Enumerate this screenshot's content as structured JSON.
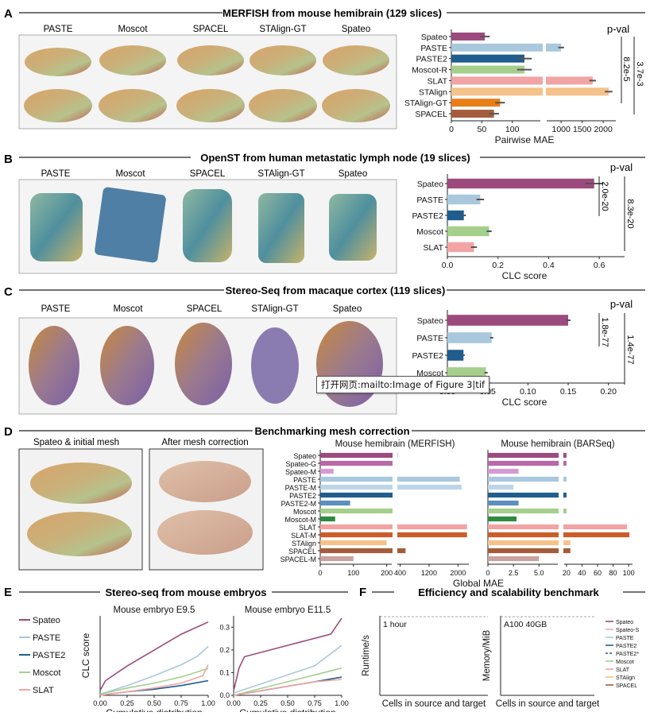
{
  "panels": {
    "A": {
      "letter": "A",
      "title": "MERFISH from mouse hemibrain (129 slices)",
      "methods": [
        "PASTE",
        "Moscot",
        "SPACEL",
        "STAlign-GT",
        "Spateo"
      ],
      "pval_label": "p-val",
      "pvals": [
        "8.2e-5",
        "3.7e-3"
      ]
    },
    "B": {
      "letter": "B",
      "title": "OpenST from human metastatic lymph node (19 slices)",
      "methods": [
        "PASTE",
        "Moscot",
        "SPACEL",
        "STAlign-GT",
        "Spateo"
      ],
      "pval_label": "p-val",
      "pvals": [
        "2.0e-20",
        "8.3e-20"
      ]
    },
    "C": {
      "letter": "C",
      "title": "Stereo-Seq from macaque cortex (119 slices)",
      "methods": [
        "PASTE",
        "Moscot",
        "SPACEL",
        "STAlign-GT",
        "Spateo"
      ],
      "pval_label": "p-val",
      "pvals": [
        "1.8e-77",
        "1.4e-77"
      ]
    },
    "D": {
      "letter": "D",
      "title": "Benchmarking mesh correction",
      "image_labels": [
        "Spateo & initial mesh",
        "After mesh correction"
      ]
    },
    "E": {
      "letter": "E",
      "title": "Stereo-seq from mouse embryos"
    },
    "F": {
      "letter": "F",
      "title": "Efficiency and scalability benchmark"
    }
  },
  "tooltip": "打开网页:mailto:Image of Figure 3|tif",
  "colors": {
    "Spateo": "#9c4a7e",
    "Spateo-G": "#b869a6",
    "Spateo-M": "#d59ad4",
    "PASTE": "#a9c8dd",
    "PASTE-M": "#bcd5e8",
    "PASTE2": "#1e5d8e",
    "PASTE2-M": "#5b8fbd",
    "Moscot": "#a5cf8c",
    "Moscot-R": "#a5cf8c",
    "Moscot-M": "#2e8b3e",
    "SLAT": "#f2a3a4",
    "SLAT-M": "#cc5c28",
    "STAlign": "#f5c28a",
    "STAlign-GT": "#e87e16",
    "SPACEL": "#a45d3c",
    "SPACEL-M": "#c9a2a0",
    "Spateo-S": "#e3a6cc",
    "PASTE2*": "#1e5d8e"
  },
  "chart_data": [
    {
      "id": "A",
      "type": "bar",
      "orientation": "horizontal",
      "categories": [
        "Spateo",
        "PASTE",
        "PASTE2",
        "Moscot-R",
        "SLAT",
        "STAlign",
        "STAlign-GT",
        "SPACEL"
      ],
      "values": [
        55,
        1000,
        120,
        120,
        1750,
        2130,
        80,
        70
      ],
      "errors": [
        8,
        70,
        12,
        12,
        80,
        90,
        8,
        8
      ],
      "xlabel": "Pairwise MAE",
      "xticks": [
        "0",
        "50",
        "100",
        "1000",
        "1500",
        "2000"
      ],
      "axis_break": true
    },
    {
      "id": "B",
      "type": "bar",
      "orientation": "horizontal",
      "categories": [
        "Spateo",
        "PASTE",
        "PASTE2",
        "Moscot",
        "SLAT"
      ],
      "values": [
        0.58,
        0.13,
        0.065,
        0.165,
        0.105
      ],
      "errors": [
        0.035,
        0.015,
        0.008,
        0.01,
        0.012
      ],
      "xlabel": "CLC score",
      "xlim": [
        0,
        0.7
      ],
      "xticks": [
        "0.0",
        "0.2",
        "0.4",
        "0.6"
      ]
    },
    {
      "id": "C",
      "type": "bar",
      "orientation": "horizontal",
      "categories": [
        "Spateo",
        "PASTE",
        "PASTE2",
        "Moscot"
      ],
      "values": [
        0.15,
        0.055,
        0.02,
        0.048
      ],
      "errors": [
        0.003,
        0.002,
        0.0015,
        0.002
      ],
      "xlabel": "CLC score",
      "xlim": [
        0,
        0.22
      ],
      "xticks": [
        "0.00",
        "0.05",
        "0.10",
        "0.15",
        "0.20"
      ]
    },
    {
      "id": "D1",
      "type": "bar",
      "orientation": "horizontal",
      "title": "Mouse hemibrain (MERFISH)",
      "categories": [
        "Spateo",
        "Spateo-G",
        "Spateo-M",
        "PASTE",
        "PASTE-M",
        "PASTE2",
        "PASTE2-M",
        "Moscot",
        "Moscot-M",
        "SLAT",
        "SLAT-M",
        "STAlign",
        "SPACEL",
        "SPACEL-M"
      ],
      "values": [
        330,
        320,
        40,
        2050,
        2100,
        310,
        90,
        320,
        45,
        2250,
        2250,
        200,
        550,
        100
      ],
      "xticks": [
        "0",
        "100",
        "200",
        "400",
        "1200",
        "2000"
      ],
      "axis_break": true
    },
    {
      "id": "D2",
      "type": "bar",
      "orientation": "horizontal",
      "title": "Mouse hemibrain (BARSeq)",
      "categories": [
        "Spateo",
        "Spateo-G",
        "Spateo-M",
        "PASTE",
        "PASTE-M",
        "PASTE2",
        "PASTE2-M",
        "Moscot",
        "Moscot-M",
        "SLAT",
        "SLAT-M",
        "STAlign",
        "SPACEL",
        "SPACEL-M"
      ],
      "values": [
        20,
        20,
        3.0,
        20,
        2.5,
        20,
        3.0,
        20,
        2.8,
        98,
        101,
        25,
        25,
        5.0
      ],
      "xlabel": "Global MAE",
      "xticks": [
        "0",
        "2.5",
        "5.0",
        "20",
        "40",
        "60",
        "80",
        "100"
      ],
      "axis_break": true
    },
    {
      "id": "E1",
      "type": "line",
      "title": "Mouse embryo E9.5",
      "xlabel": "Cumulative distribution",
      "ylabel": "CLC score",
      "xticks": [
        "0.00",
        "0.25",
        "0.50",
        "0.75",
        "1.00"
      ],
      "legend": [
        "Spateo",
        "PASTE",
        "PASTE2",
        "Moscot",
        "SLAT"
      ],
      "series": [
        {
          "name": "Spateo",
          "x": [
            0,
            0.05,
            0.25,
            0.5,
            0.75,
            1.0
          ],
          "y": [
            0.04,
            0.12,
            0.24,
            0.37,
            0.5,
            0.6
          ]
        },
        {
          "name": "PASTE",
          "x": [
            0,
            0.25,
            0.5,
            0.75,
            0.9,
            1.0
          ],
          "y": [
            0.01,
            0.08,
            0.16,
            0.25,
            0.32,
            0.4
          ]
        },
        {
          "name": "PASTE2",
          "x": [
            0,
            0.25,
            0.5,
            0.75,
            1.0
          ],
          "y": [
            0.0,
            0.03,
            0.05,
            0.08,
            0.12
          ]
        },
        {
          "name": "Moscot",
          "x": [
            0,
            0.25,
            0.5,
            0.75,
            1.0
          ],
          "y": [
            0.01,
            0.06,
            0.1,
            0.15,
            0.22
          ]
        },
        {
          "name": "SLAT",
          "x": [
            0,
            0.25,
            0.5,
            0.75,
            0.95,
            1.0
          ],
          "y": [
            0.0,
            0.03,
            0.06,
            0.1,
            0.16,
            0.25
          ]
        }
      ]
    },
    {
      "id": "E2",
      "type": "line",
      "title": "Mouse embryo E11.5",
      "xlabel": "Cumulative distribution",
      "xticks": [
        "0.00",
        "0.25",
        "0.50",
        "0.75",
        "1.00"
      ],
      "yticks": [
        "0.0",
        "0.1",
        "0.2",
        "0.3"
      ],
      "series": [
        {
          "name": "Spateo",
          "x": [
            0,
            0.05,
            0.1,
            0.5,
            0.9,
            1.0
          ],
          "y": [
            0.02,
            0.12,
            0.17,
            0.22,
            0.27,
            0.34
          ]
        },
        {
          "name": "PASTE",
          "x": [
            0,
            0.25,
            0.5,
            0.75,
            1.0
          ],
          "y": [
            0.01,
            0.05,
            0.09,
            0.13,
            0.22
          ]
        },
        {
          "name": "PASTE2",
          "x": [
            0,
            0.25,
            0.5,
            0.75,
            1.0
          ],
          "y": [
            0.0,
            0.02,
            0.04,
            0.06,
            0.08
          ]
        },
        {
          "name": "Moscot",
          "x": [
            0,
            0.25,
            0.5,
            0.75,
            1.0
          ],
          "y": [
            0.0,
            0.03,
            0.06,
            0.09,
            0.12
          ]
        },
        {
          "name": "SLAT",
          "x": [
            0,
            0.25,
            0.5,
            0.75,
            1.0
          ],
          "y": [
            0.0,
            0.02,
            0.04,
            0.06,
            0.07
          ]
        }
      ]
    },
    {
      "id": "F1",
      "type": "line",
      "scale": "log-log",
      "annotation": "1 hour",
      "xlabel": "Cells in source and target",
      "ylabel": "Runtime/s"
    },
    {
      "id": "F2",
      "type": "line",
      "scale": "log-log",
      "annotation": "A100 40GB",
      "xlabel": "Cells in source and target",
      "ylabel": "Memory/MiB",
      "legend": [
        "Spateo",
        "Spateo-S",
        "PASTE",
        "PASTE2",
        "PASTE2*",
        "Moscot",
        "SLAT",
        "STAlign",
        "SPACEL"
      ]
    }
  ]
}
